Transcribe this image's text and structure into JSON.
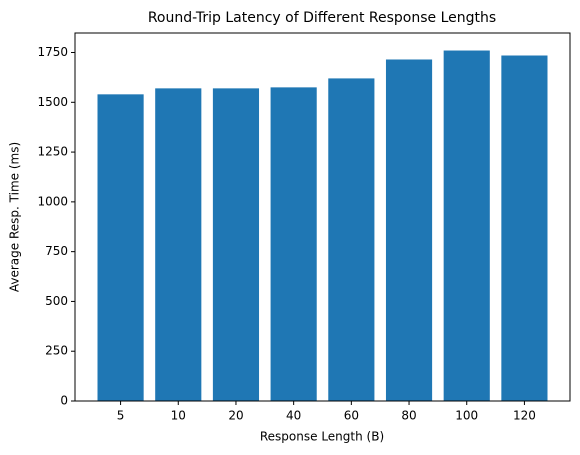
{
  "chart_data": {
    "type": "bar",
    "title": "Round-Trip Latency of Different Response Lengths",
    "x_label": "Response Length (B)",
    "y_label": "Average Resp. Time (ms)",
    "categories": [
      "5",
      "10",
      "20",
      "40",
      "60",
      "80",
      "100",
      "120"
    ],
    "values": [
      1540,
      1570,
      1570,
      1575,
      1620,
      1715,
      1760,
      1735
    ],
    "color": "#1f77b4",
    "ylim": [
      0,
      1848
    ],
    "yticks": [
      0,
      250,
      500,
      750,
      1000,
      1250,
      1500,
      1750
    ],
    "grid": false
  }
}
